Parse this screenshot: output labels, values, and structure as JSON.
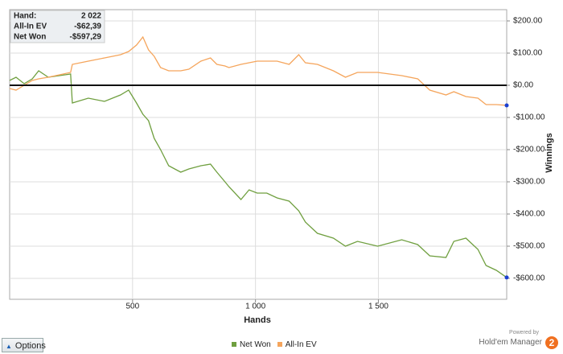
{
  "chart_data": {
    "type": "line",
    "xlabel": "Hands",
    "ylabel": "Winnings",
    "info_box": [
      {
        "label": "Hand:",
        "value": "2 022"
      },
      {
        "label": "All-In EV",
        "value": "-$62,39"
      },
      {
        "label": "Net Won",
        "value": "-$597,29"
      }
    ],
    "x": [
      0,
      26,
      59,
      92,
      118,
      157,
      248,
      255,
      320,
      386,
      451,
      484,
      516,
      542,
      565,
      588,
      614,
      647,
      696,
      729,
      778,
      817,
      843,
      876,
      892,
      941,
      974,
      1007,
      1046,
      1088,
      1137,
      1176,
      1203,
      1252,
      1317,
      1366,
      1415,
      1497,
      1595,
      1660,
      1709,
      1775,
      1807,
      1856,
      1905,
      1938,
      1980,
      2022
    ],
    "series": [
      {
        "name": "Net Won",
        "color": "#6f9f3f",
        "values": [
          15,
          25,
          5,
          20,
          45,
          25,
          35,
          -55,
          -40,
          -50,
          -30,
          -15,
          -55,
          -90,
          -110,
          -165,
          -200,
          -250,
          -270,
          -260,
          -250,
          -245,
          -270,
          -300,
          -315,
          -355,
          -325,
          -335,
          -335,
          -350,
          -360,
          -390,
          -425,
          -460,
          -475,
          -500,
          -485,
          -500,
          -480,
          -495,
          -530,
          -535,
          -485,
          -475,
          -510,
          -560,
          -575,
          -597.29
        ]
      },
      {
        "name": "All-In EV",
        "color": "#f5a55c",
        "values": [
          -10,
          -15,
          0,
          15,
          20,
          25,
          40,
          65,
          75,
          85,
          95,
          105,
          125,
          150,
          110,
          90,
          55,
          45,
          45,
          50,
          75,
          85,
          65,
          60,
          55,
          65,
          70,
          75,
          75,
          75,
          65,
          95,
          70,
          65,
          45,
          25,
          40,
          40,
          30,
          20,
          -15,
          -30,
          -20,
          -35,
          -40,
          -60,
          -60,
          -62.39
        ]
      }
    ],
    "xlim": [
      0,
      2022
    ],
    "xticks": [
      500,
      {
        "value": 1000,
        "label": "1 000"
      },
      {
        "value": 1500,
        "label": "1 500"
      }
    ],
    "ylim": [
      -665,
      235
    ],
    "yticks": [
      {
        "value": 200,
        "label": "$200.00"
      },
      {
        "value": 100,
        "label": "$100.00"
      },
      {
        "value": 0,
        "label": "$0.00"
      },
      {
        "value": -100,
        "label": "-$100.00"
      },
      {
        "value": -200,
        "label": "-$200.00"
      },
      {
        "value": -300,
        "label": "-$300.00"
      },
      {
        "value": -400,
        "label": "-$400.00"
      },
      {
        "value": -500,
        "label": "-$500.00"
      },
      {
        "value": -600,
        "label": "-$600.00"
      }
    ],
    "grid": true,
    "end_marker_color": "#1a3fd0",
    "zero_line": true
  },
  "ui": {
    "options_button": "Options",
    "powered_by": "Powered by",
    "brand": "Hold'em Manager",
    "logo_digit": "2"
  }
}
